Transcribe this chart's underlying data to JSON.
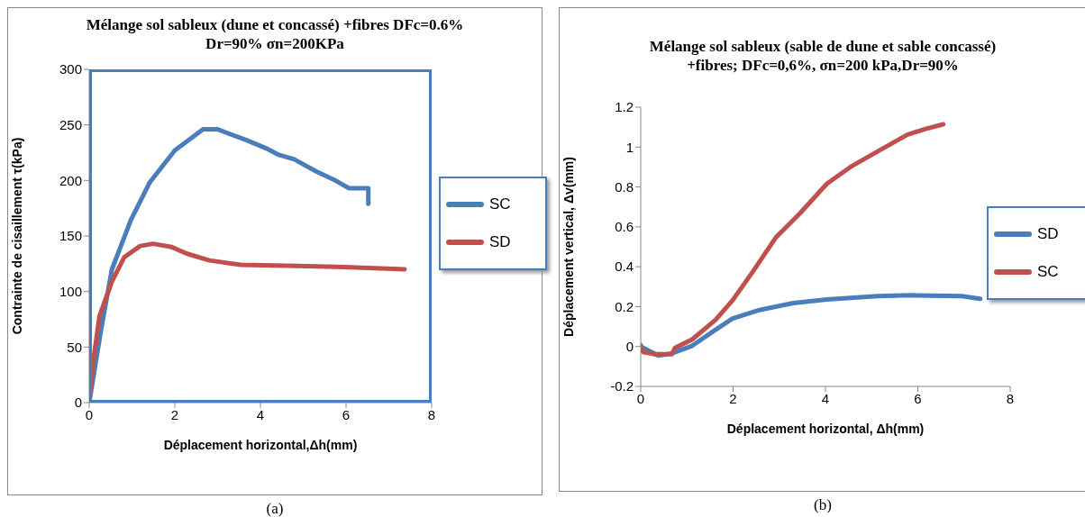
{
  "chart_data": [
    {
      "type": "line",
      "title": "Mélange sol sableux (dune et concassé) +fibres DFc=0.6% Dr=90% σn=200KPa",
      "xlabel": "Déplacement horizontal,Δh(mm)",
      "ylabel": "Contrainte de cisaillement τ(kPa)",
      "xlim": [
        0,
        8
      ],
      "xticks": [
        0,
        2,
        4,
        6,
        8
      ],
      "ylim": [
        0,
        300
      ],
      "yticks": [
        0,
        50,
        100,
        150,
        200,
        250,
        300
      ],
      "grid": false,
      "legend": "right",
      "annotations": [
        "(a)"
      ],
      "series": [
        {
          "name": "SC",
          "color": "#4a7ebb",
          "x": [
            0,
            0.27,
            0.53,
            0.75,
            0.97,
            1.41,
            2.0,
            2.66,
            3.0,
            3.69,
            4.13,
            4.43,
            4.79,
            5.31,
            5.75,
            6.07,
            6.52,
            6.52
          ],
          "values": [
            0,
            64,
            120,
            142,
            164,
            198,
            227,
            246,
            246,
            236,
            229,
            223,
            219,
            208,
            200,
            193,
            193,
            179
          ]
        },
        {
          "name": "SD",
          "color": "#c0504d",
          "x": [
            0,
            0.09,
            0.24,
            0.53,
            0.82,
            1.19,
            1.49,
            1.93,
            2.29,
            2.81,
            3.54,
            4.87,
            5.97,
            7.37
          ],
          "values": [
            0,
            36,
            78,
            109,
            131,
            141,
            143,
            140,
            134,
            128,
            124,
            123,
            122,
            120
          ]
        }
      ]
    },
    {
      "type": "line",
      "title": "Mélange sol sableux (sable de dune et sable concassé) +fibres; DFc=0,6%, σn=200 kPa,Dr=90%",
      "xlabel": "Déplacement horizontal, Δh(mm)",
      "ylabel": "Déplacement vertical, Δv(mm)",
      "xlim": [
        0,
        8
      ],
      "xticks": [
        0,
        2,
        4,
        6,
        8
      ],
      "ylim": [
        -0.2,
        1.2
      ],
      "yticks": [
        -0.2,
        0,
        0.2,
        0.4,
        0.6,
        0.8,
        1,
        1.2
      ],
      "grid": false,
      "legend": "right",
      "annotations": [
        "(b)"
      ],
      "series": [
        {
          "name": "SD",
          "color": "#4a7ebb",
          "x": [
            0,
            0.38,
            0.67,
            1.11,
            1.62,
            1.99,
            2.57,
            3.3,
            4.03,
            5.12,
            5.85,
            6.95,
            7.35
          ],
          "values": [
            0,
            -0.045,
            -0.035,
            0.003,
            0.084,
            0.14,
            0.183,
            0.218,
            0.236,
            0.253,
            0.257,
            0.253,
            0.239
          ]
        },
        {
          "name": "SC",
          "color": "#c0504d",
          "x": [
            0,
            0.05,
            0.31,
            0.67,
            0.74,
            1.11,
            1.62,
            1.99,
            2.42,
            2.93,
            3.45,
            4.03,
            4.54,
            5.12,
            5.77,
            6.15,
            6.55
          ],
          "values": [
            0.007,
            -0.028,
            -0.039,
            -0.039,
            -0.007,
            0.035,
            0.134,
            0.232,
            0.373,
            0.548,
            0.668,
            0.816,
            0.9,
            0.977,
            1.062,
            1.09,
            1.114
          ]
        }
      ]
    }
  ]
}
